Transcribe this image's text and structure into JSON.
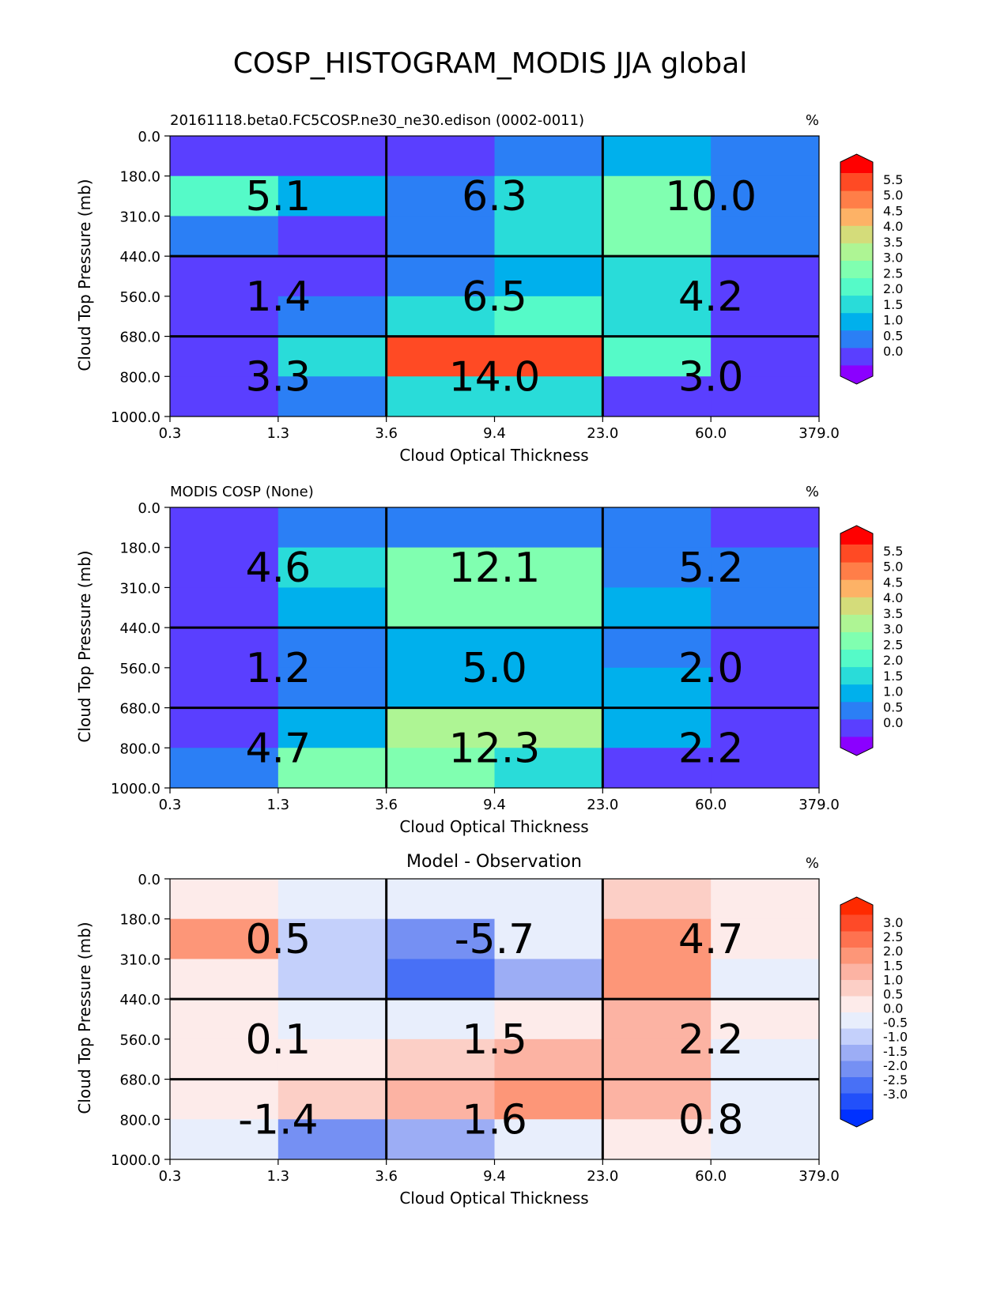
{
  "figure_title": "COSP_HISTOGRAM_MODIS JJA global",
  "axis_text": {
    "xlabel": "Cloud Optical Thickness",
    "ylabel": "Cloud Top Pressure (mb)",
    "xticks": [
      "0.3",
      "1.3",
      "3.6",
      "9.4",
      "23.0",
      "60.0",
      "379.0"
    ],
    "yticks": [
      "0.0",
      "180.0",
      "310.0",
      "440.0",
      "560.0",
      "680.0",
      "800.0",
      "1000.0"
    ]
  },
  "chart_data": [
    {
      "type": "heatmap",
      "title_left": "20161118.beta0.FC5COSP.ne30_ne30.edison (0002-0011)",
      "title_center": "",
      "units": "%",
      "xlabel": "Cloud Optical Thickness",
      "ylabel": "Cloud Top Pressure (mb)",
      "x_edges": [
        0.3,
        1.3,
        3.6,
        9.4,
        23.0,
        60.0,
        379.0
      ],
      "y_edges": [
        0.0,
        180.0,
        310.0,
        440.0,
        560.0,
        680.0,
        800.0,
        1000.0
      ],
      "cell_bins": [
        [
          0.4,
          0.4,
          0.4,
          0.6,
          1.4,
          0.6
        ],
        [
          2.2,
          1.4,
          0.6,
          1.9,
          2.8,
          0.6
        ],
        [
          0.6,
          0.4,
          0.6,
          1.9,
          2.8,
          0.6
        ],
        [
          0.4,
          0.4,
          0.6,
          1.4,
          1.9,
          0.4
        ],
        [
          0.4,
          0.6,
          1.9,
          2.2,
          1.9,
          0.4
        ],
        [
          0.4,
          1.9,
          5.4,
          5.4,
          2.2,
          0.4
        ],
        [
          0.4,
          0.6,
          1.9,
          1.9,
          0.4,
          0.4
        ]
      ],
      "summary": {
        "row_groups": [
          "0.0-440.0",
          "440.0-680.0",
          "680.0-1000.0"
        ],
        "col_groups": [
          "0.3-3.6",
          "3.6-23.0",
          "23.0-379.0"
        ],
        "values": [
          [
            5.1,
            6.3,
            10.0
          ],
          [
            1.4,
            6.5,
            4.2
          ],
          [
            3.3,
            14.0,
            3.0
          ]
        ]
      },
      "colorbar": {
        "labels": [
          "5.5",
          "5.0",
          "4.5",
          "4.0",
          "3.5",
          "3.0",
          "2.5",
          "2.0",
          "1.5",
          "1.0",
          "0.5",
          "0.0"
        ],
        "colors": [
          "#8b00ff",
          "#5a3fff",
          "#2b7ff5",
          "#00b0ec",
          "#29dcd9",
          "#55fac8",
          "#80ffb0",
          "#aef594",
          "#d4dc7a",
          "#fdb266",
          "#ff7e48",
          "#ff4a24",
          "#ff0000"
        ]
      }
    },
    {
      "type": "heatmap",
      "title_left": "MODIS COSP (None)",
      "title_center": "",
      "units": "%",
      "xlabel": "Cloud Optical Thickness",
      "ylabel": "Cloud Top Pressure (mb)",
      "x_edges": [
        0.3,
        1.3,
        3.6,
        9.4,
        23.0,
        60.0,
        379.0
      ],
      "y_edges": [
        0.0,
        180.0,
        310.0,
        440.0,
        560.0,
        680.0,
        800.0,
        1000.0
      ],
      "cell_bins": [
        [
          0.4,
          0.6,
          0.6,
          0.6,
          0.6,
          0.4
        ],
        [
          0.4,
          1.9,
          2.6,
          2.6,
          0.6,
          0.6
        ],
        [
          0.4,
          1.4,
          2.6,
          2.8,
          1.4,
          0.6
        ],
        [
          0.4,
          0.6,
          1.4,
          1.4,
          0.6,
          0.4
        ],
        [
          0.4,
          0.6,
          1.4,
          1.4,
          1.4,
          0.4
        ],
        [
          0.4,
          1.4,
          3.4,
          3.4,
          1.4,
          0.4
        ],
        [
          0.6,
          2.6,
          2.8,
          1.9,
          0.4,
          0.4
        ]
      ],
      "summary": {
        "row_groups": [
          "0.0-440.0",
          "440.0-680.0",
          "680.0-1000.0"
        ],
        "col_groups": [
          "0.3-3.6",
          "3.6-23.0",
          "23.0-379.0"
        ],
        "values": [
          [
            4.6,
            12.1,
            5.2
          ],
          [
            1.2,
            5.0,
            2.0
          ],
          [
            4.7,
            12.3,
            2.2
          ]
        ]
      },
      "colorbar": {
        "labels": [
          "5.5",
          "5.0",
          "4.5",
          "4.0",
          "3.5",
          "3.0",
          "2.5",
          "2.0",
          "1.5",
          "1.0",
          "0.5",
          "0.0"
        ],
        "colors": [
          "#8b00ff",
          "#5a3fff",
          "#2b7ff5",
          "#00b0ec",
          "#29dcd9",
          "#55fac8",
          "#80ffb0",
          "#aef594",
          "#d4dc7a",
          "#fdb266",
          "#ff7e48",
          "#ff4a24",
          "#ff0000"
        ]
      }
    },
    {
      "type": "heatmap",
      "title_left": "",
      "title_center": "Model - Observation",
      "units": "%",
      "xlabel": "Cloud Optical Thickness",
      "ylabel": "Cloud Top Pressure (mb)",
      "x_edges": [
        0.3,
        1.3,
        3.6,
        9.4,
        23.0,
        60.0,
        379.0
      ],
      "y_edges": [
        0.0,
        180.0,
        310.0,
        440.0,
        560.0,
        680.0,
        800.0,
        1000.0
      ],
      "cell_bins": [
        [
          0.2,
          -0.2,
          -0.2,
          -0.2,
          0.8,
          0.2
        ],
        [
          1.7,
          -0.7,
          -1.7,
          -0.2,
          1.7,
          0.2
        ],
        [
          0.2,
          -0.7,
          -2.3,
          -1.2,
          1.7,
          -0.2
        ],
        [
          0.2,
          -0.2,
          -0.2,
          0.2,
          1.2,
          0.2
        ],
        [
          0.2,
          0.2,
          0.8,
          1.2,
          1.2,
          -0.2
        ],
        [
          0.2,
          0.8,
          1.2,
          1.7,
          1.2,
          -0.2
        ],
        [
          -0.2,
          -1.7,
          -1.2,
          -0.2,
          0.2,
          -0.2
        ]
      ],
      "summary": {
        "row_groups": [
          "0.0-440.0",
          "440.0-680.0",
          "680.0-1000.0"
        ],
        "col_groups": [
          "0.3-3.6",
          "3.6-23.0",
          "23.0-379.0"
        ],
        "values": [
          [
            0.5,
            -5.7,
            4.7
          ],
          [
            0.1,
            1.5,
            2.2
          ],
          [
            -1.4,
            1.6,
            0.8
          ]
        ]
      },
      "colorbar": {
        "labels": [
          "3.0",
          "2.5",
          "2.0",
          "1.5",
          "1.0",
          "0.5",
          "0.0",
          "-0.5",
          "-1.0",
          "-1.5",
          "-2.0",
          "-2.5",
          "-3.0"
        ],
        "colors": [
          "#0031ff",
          "#2250fa",
          "#4870f6",
          "#7590f3",
          "#9cadf5",
          "#c4d0fb",
          "#e8eefc",
          "#fdebea",
          "#fccfc6",
          "#fcb3a3",
          "#fd9678",
          "#fe7250",
          "#fe4a28",
          "#ff2a00"
        ]
      }
    }
  ]
}
